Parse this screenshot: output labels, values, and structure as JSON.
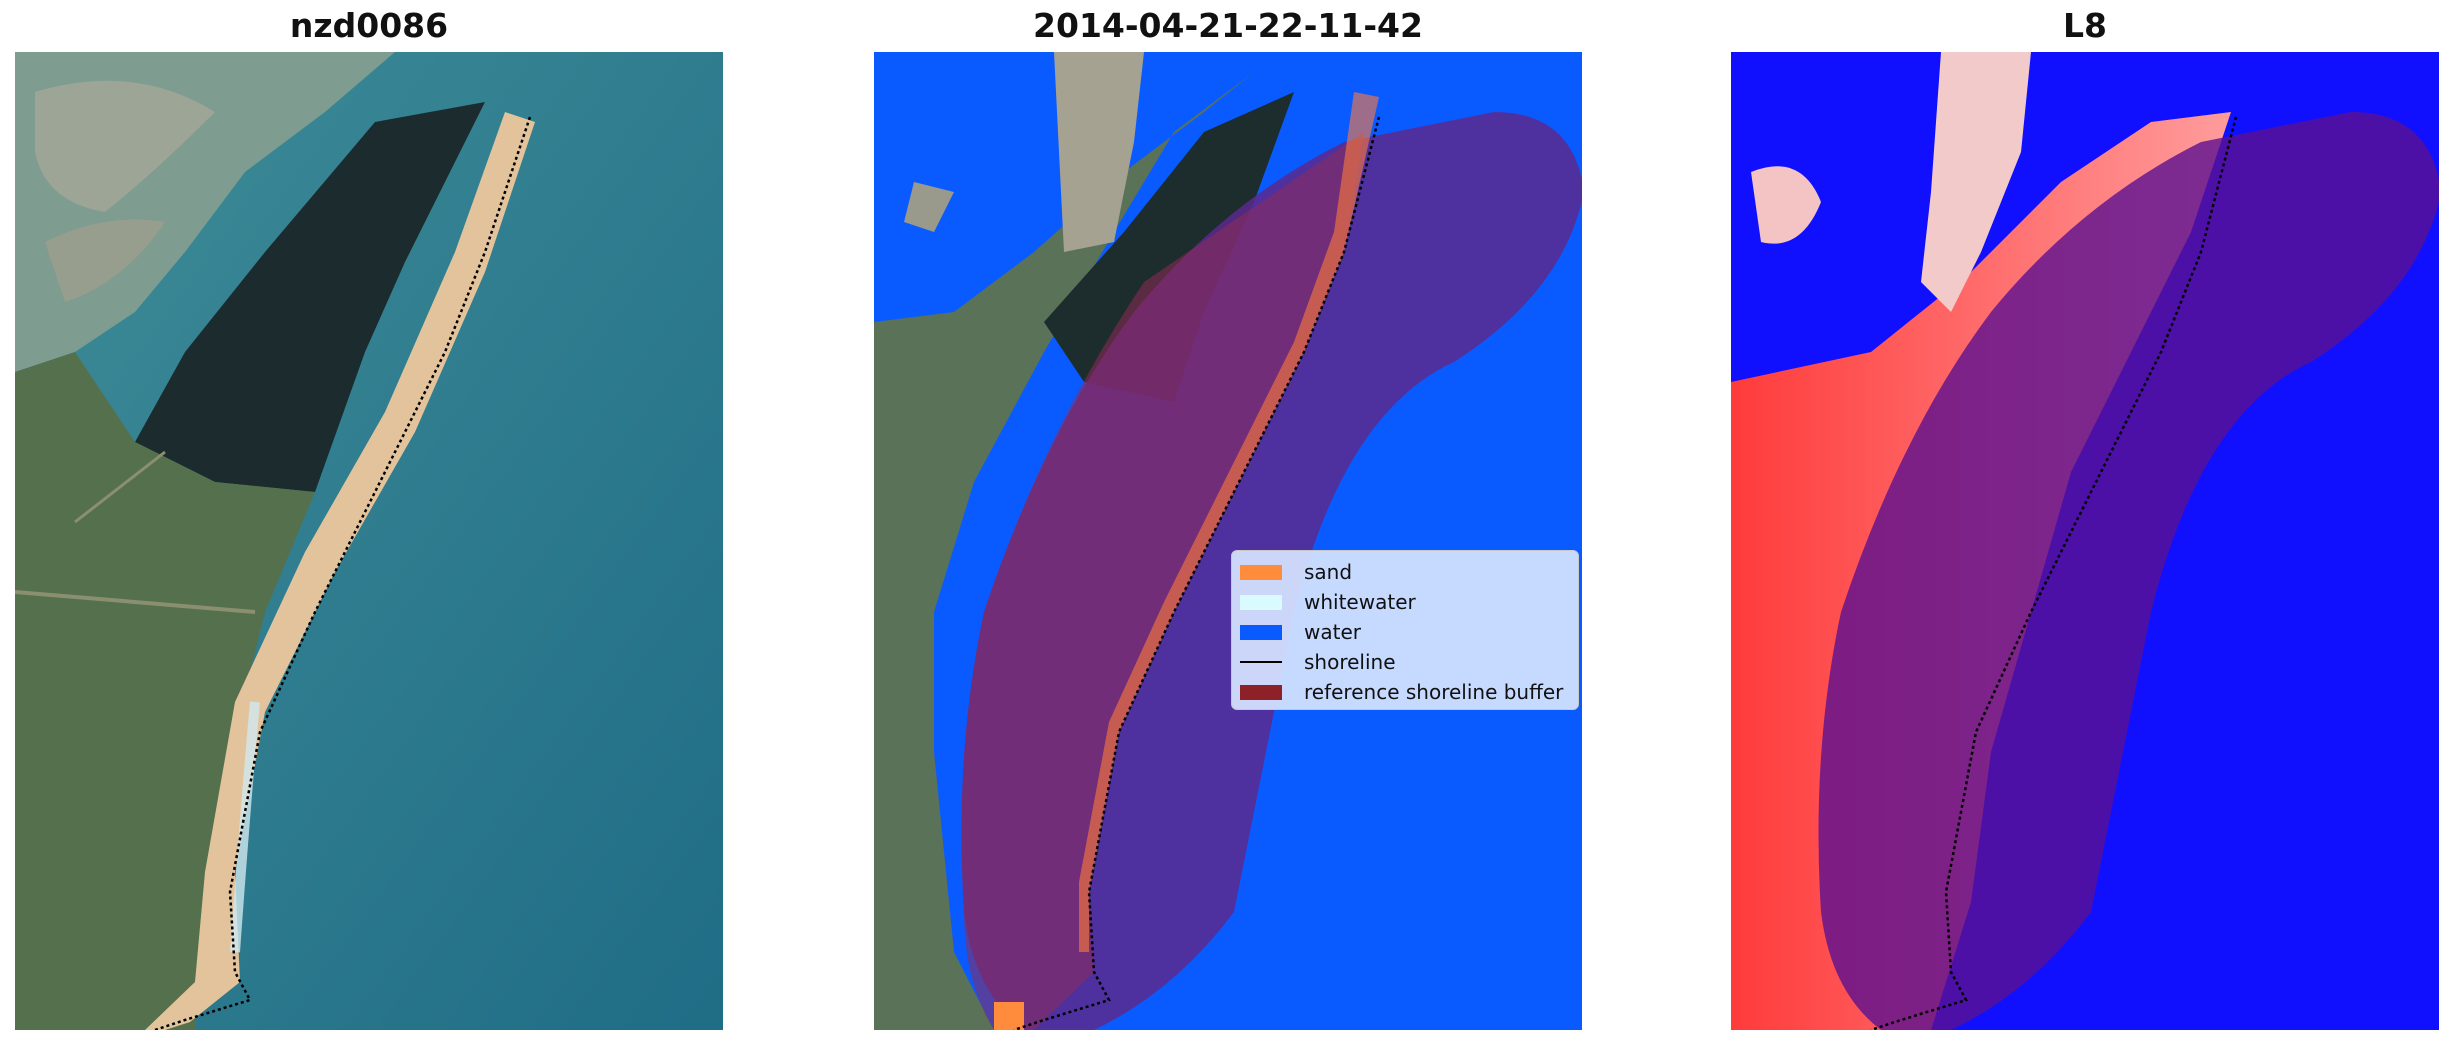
{
  "panels": [
    {
      "title": "nzd0086"
    },
    {
      "title": "2014-04-21-22-11-42"
    },
    {
      "title": "L8"
    }
  ],
  "legend": {
    "items": [
      {
        "label": "sand",
        "color": "#ff8b3d",
        "kind": "patch"
      },
      {
        "label": "whitewater",
        "color": "#d9fbff",
        "kind": "patch"
      },
      {
        "label": "water",
        "color": "#0a5bff",
        "kind": "patch"
      },
      {
        "label": "shoreline",
        "color": "#000000",
        "kind": "line"
      },
      {
        "label": "reference shoreline buffer",
        "color": "#8e2127",
        "kind": "patch"
      }
    ]
  },
  "colors": {
    "ocean": "#2a7f95",
    "land_green": "#4f6b4a",
    "forest": "#1c2b2e",
    "sand": "#e7c49c",
    "water_class": "#0a5bff",
    "buffer_overlay": "#4b1e8c",
    "index_red": "#ff3b3b",
    "index_blue": "#1010ff"
  }
}
